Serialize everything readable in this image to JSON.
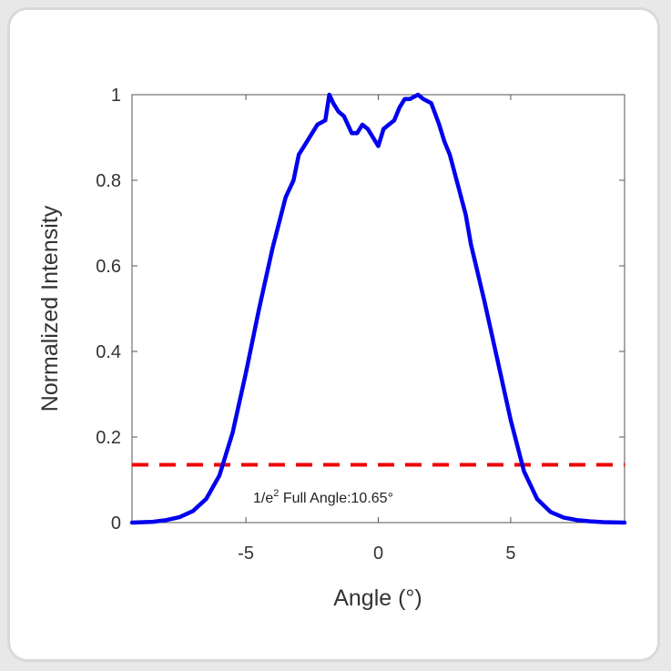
{
  "chart_data": {
    "type": "line",
    "xlabel": "Angle (°)",
    "ylabel": "Normalized Intensity",
    "xlim": [
      -9.3,
      9.3
    ],
    "ylim": [
      0,
      1
    ],
    "xticks": [
      -5,
      0,
      5
    ],
    "yticks": [
      0,
      0.2,
      0.4,
      0.6,
      0.8,
      1
    ],
    "xtick_labels": [
      "-5",
      "0",
      "5"
    ],
    "ytick_labels": [
      "0",
      "0.2",
      "0.4",
      "0.6",
      "0.8",
      "1"
    ],
    "grid": false,
    "series": [
      {
        "color": "#0000ee",
        "x": [
          -9.3,
          -8.5,
          -8.0,
          -7.5,
          -7.0,
          -6.5,
          -6.0,
          -5.5,
          -5.0,
          -4.5,
          -4.0,
          -3.5,
          -3.2,
          -3.0,
          -2.8,
          -2.5,
          -2.3,
          -2.0,
          -1.85,
          -1.7,
          -1.5,
          -1.3,
          -1.0,
          -0.8,
          -0.6,
          -0.4,
          -0.2,
          0.0,
          0.2,
          0.4,
          0.6,
          0.8,
          1.0,
          1.2,
          1.5,
          1.7,
          2.0,
          2.3,
          2.5,
          2.7,
          3.0,
          3.3,
          3.5,
          4.0,
          4.5,
          5.0,
          5.5,
          6.0,
          6.5,
          7.0,
          7.5,
          8.0,
          8.5,
          9.3
        ],
        "y": [
          0.0,
          0.002,
          0.006,
          0.013,
          0.027,
          0.055,
          0.11,
          0.21,
          0.35,
          0.5,
          0.64,
          0.76,
          0.8,
          0.86,
          0.88,
          0.91,
          0.93,
          0.94,
          1.0,
          0.98,
          0.96,
          0.95,
          0.91,
          0.91,
          0.93,
          0.92,
          0.9,
          0.88,
          0.92,
          0.93,
          0.94,
          0.97,
          0.99,
          0.99,
          1.0,
          0.99,
          0.98,
          0.93,
          0.89,
          0.86,
          0.79,
          0.72,
          0.65,
          0.52,
          0.38,
          0.24,
          0.12,
          0.055,
          0.025,
          0.012,
          0.006,
          0.003,
          0.001,
          0.0
        ]
      }
    ],
    "threshold": {
      "y": 0.135,
      "color": "#ee0000",
      "style": "dashed"
    },
    "annotation": {
      "prefix": "1/e",
      "superscript": "2",
      "text": " Full Angle:10.65°"
    }
  }
}
